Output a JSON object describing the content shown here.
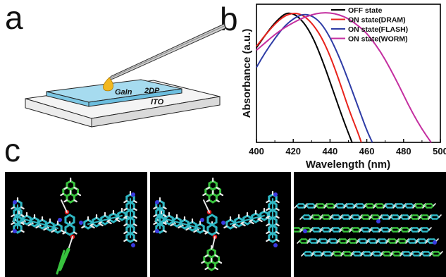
{
  "panels": {
    "a": "a",
    "b": "b",
    "c": "c"
  },
  "device": {
    "label_drop": "GaIn",
    "label_film": "2DP",
    "label_substrate": "ITO"
  },
  "chart_data": {
    "type": "line",
    "xlabel": "Wavelength (nm)",
    "ylabel": "Absorbance (a.u.)",
    "xlim": [
      400,
      500
    ],
    "xticks": [
      400,
      420,
      440,
      460,
      480,
      500
    ],
    "ylim": [
      0,
      1.05
    ],
    "legend_position": "top-right",
    "grid": false,
    "series": [
      {
        "name": "OFF state",
        "color": "#000000",
        "x": [
          400,
          405,
          410,
          415,
          418,
          422,
          427,
          432,
          437,
          442,
          447,
          450,
          452
        ],
        "y": [
          0.72,
          0.82,
          0.91,
          0.975,
          0.985,
          0.965,
          0.89,
          0.76,
          0.58,
          0.38,
          0.18,
          0.07,
          0.0
        ]
      },
      {
        "name": "ON state(DRAM)",
        "color": "#e8231c",
        "x": [
          400,
          405,
          410,
          415,
          420,
          425,
          430,
          435,
          440,
          445,
          450,
          455,
          457
        ],
        "y": [
          0.73,
          0.82,
          0.9,
          0.96,
          0.985,
          0.97,
          0.91,
          0.81,
          0.66,
          0.47,
          0.26,
          0.08,
          0.0
        ]
      },
      {
        "name": "ON state(FLASH)",
        "color": "#2e3ca6",
        "x": [
          400,
          405,
          410,
          415,
          420,
          425,
          430,
          435,
          440,
          445,
          450,
          455,
          460,
          463
        ],
        "y": [
          0.57,
          0.69,
          0.79,
          0.88,
          0.94,
          0.975,
          0.965,
          0.91,
          0.8,
          0.65,
          0.47,
          0.28,
          0.09,
          0.0
        ]
      },
      {
        "name": "ON state(WORM)",
        "color": "#c42fa0",
        "x": [
          400,
          405,
          410,
          415,
          420,
          425,
          430,
          435,
          440,
          445,
          450,
          455,
          460,
          465,
          470,
          475,
          480,
          485,
          490,
          495
        ],
        "y": [
          0.7,
          0.76,
          0.82,
          0.87,
          0.91,
          0.945,
          0.97,
          0.985,
          0.985,
          0.97,
          0.94,
          0.89,
          0.83,
          0.74,
          0.63,
          0.5,
          0.36,
          0.22,
          0.1,
          0.0
        ]
      }
    ]
  },
  "molecule_colors": {
    "carbon": "#2fb8c4",
    "pyrene": "#38c23e",
    "hydrogen": "#e8e8e8",
    "nitrogen": "#3a3ae0",
    "oxygen": "#e02020"
  }
}
